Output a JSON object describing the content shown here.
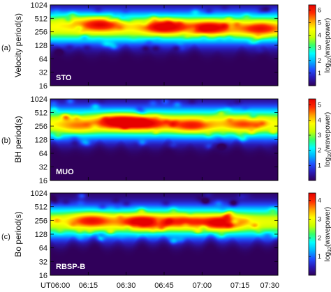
{
  "chart_data": [
    {
      "type": "heatmap",
      "panel_label": "(a)",
      "station": "STO",
      "ylabel": "Velocity period(s)",
      "ytick_labels": [
        "16",
        "32",
        "64",
        "128",
        "256",
        "512",
        "1024"
      ],
      "yticks": [
        16,
        32,
        64,
        128,
        256,
        512,
        1024
      ],
      "yscale": "log2",
      "ylim": [
        16,
        1024
      ],
      "colorbar_label": "log10(wavepower)",
      "colorbar_ticks": [
        "1",
        "2",
        "3",
        "4",
        "5",
        "6"
      ],
      "colorbar_range": [
        0,
        6.4
      ],
      "core_period": 320,
      "core_strength": 6.0,
      "hotspots": [
        [
          0.22,
          400,
          5.9
        ],
        [
          0.5,
          340,
          6.2
        ],
        [
          0.7,
          320,
          6.0
        ],
        [
          0.92,
          300,
          5.5
        ],
        [
          0.08,
          500,
          4.2
        ]
      ]
    },
    {
      "type": "heatmap",
      "panel_label": "(b)",
      "station": "MUO",
      "ylabel": "BH period(s)",
      "ytick_labels": [
        "16",
        "32",
        "64",
        "128",
        "256",
        "512",
        "1024"
      ],
      "yticks": [
        16,
        32,
        64,
        128,
        256,
        512,
        1024
      ],
      "yscale": "log2",
      "ylim": [
        16,
        1024
      ],
      "colorbar_label": "log10(wavepower)",
      "colorbar_ticks": [
        "1",
        "2",
        "3",
        "4",
        "5"
      ],
      "colorbar_range": [
        0,
        5.4
      ],
      "core_period": 300,
      "core_strength": 5.0,
      "hotspots": [
        [
          0.3,
          330,
          5.3
        ],
        [
          0.42,
          300,
          4.8
        ],
        [
          0.62,
          260,
          4.6
        ],
        [
          0.85,
          280,
          4.2
        ],
        [
          0.12,
          250,
          4.0
        ]
      ]
    },
    {
      "type": "heatmap",
      "panel_label": "(c)",
      "station": "RBSP-B",
      "ylabel": "Bo period(s)",
      "ytick_labels": [
        "16",
        "32",
        "64",
        "128",
        "256",
        "512",
        "1024"
      ],
      "yticks": [
        16,
        32,
        64,
        128,
        256,
        512,
        1024
      ],
      "yscale": "log2",
      "ylim": [
        16,
        1024
      ],
      "colorbar_label": "log10(wavepower)",
      "colorbar_ticks": [
        "1",
        "2",
        "3",
        "4"
      ],
      "colorbar_range": [
        0,
        4.4
      ],
      "core_period": 240,
      "core_strength": 4.0,
      "hotspots": [
        [
          0.4,
          240,
          4.3
        ],
        [
          0.75,
          230,
          4.2
        ],
        [
          0.18,
          260,
          3.8
        ],
        [
          0.58,
          250,
          3.6
        ]
      ]
    }
  ],
  "xaxis": {
    "tick_labels": [
      "UT06:00",
      "06:15",
      "06:30",
      "06:45",
      "07:00",
      "07:15",
      "07:30"
    ],
    "xlim": [
      "06:00",
      "07:30"
    ]
  },
  "colors": {
    "colormap": [
      "#30005a",
      "#2a1ab4",
      "#1f4fff",
      "#00b4ff",
      "#00ffff",
      "#36ff6a",
      "#c8ff00",
      "#ffff00",
      "#ffa000",
      "#ff2a00",
      "#e60000"
    ],
    "background": "#ffffff"
  }
}
